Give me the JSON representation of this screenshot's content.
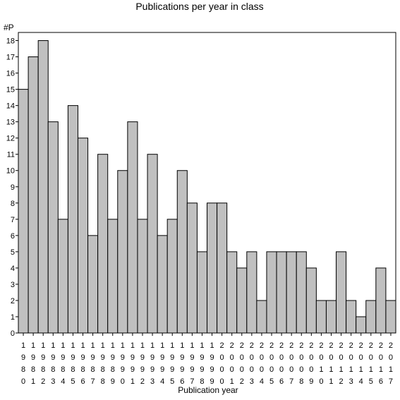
{
  "chart_data": {
    "type": "bar",
    "title": "Publications per year in class",
    "ylabel": "#P",
    "xlabel": "Publication year",
    "ylim": [
      0,
      18.5
    ],
    "yticks": [
      0,
      1,
      2,
      3,
      4,
      5,
      6,
      7,
      8,
      9,
      10,
      11,
      12,
      13,
      14,
      15,
      16,
      17,
      18
    ],
    "categories": [
      "1980",
      "1981",
      "1982",
      "1983",
      "1984",
      "1985",
      "1986",
      "1987",
      "1988",
      "1989",
      "1990",
      "1991",
      "1992",
      "1993",
      "1994",
      "1995",
      "1996",
      "1997",
      "1998",
      "1999",
      "2000",
      "2001",
      "2002",
      "2003",
      "2004",
      "2005",
      "2006",
      "2007",
      "2008",
      "2009",
      "2010",
      "2011",
      "2012",
      "2013",
      "2014",
      "2015",
      "2016",
      "2017"
    ],
    "values": [
      15,
      17,
      18,
      13,
      7,
      14,
      12,
      6,
      11,
      7,
      10,
      13,
      7,
      11,
      6,
      7,
      10,
      8,
      5,
      8,
      8,
      5,
      4,
      5,
      2,
      5,
      5,
      5,
      5,
      4,
      2,
      2,
      5,
      2,
      1,
      2,
      4,
      2
    ],
    "bar_color": "#c0c0c0",
    "grid": false,
    "legend": "none"
  }
}
